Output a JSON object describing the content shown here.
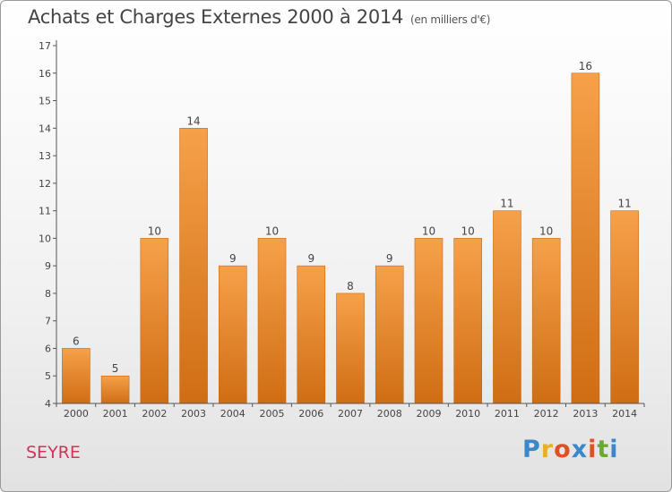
{
  "title": "Achats et Charges Externes 2000 à 2014",
  "unit": "(en milliers d'€)",
  "town": "SEYRE",
  "logo": {
    "text": "Proxiti",
    "letters": [
      "P",
      "r",
      "o",
      "x",
      "i",
      "t",
      "i"
    ],
    "colors": [
      "#3a87c9",
      "#e8b020",
      "#e05020",
      "#3a87c9",
      "#e05020",
      "#6aaa30",
      "#3a87c9"
    ]
  },
  "colors": {
    "bar": "#f0922e",
    "bar_dark": "#d26e12",
    "axis": "#555555",
    "label": "#444444"
  },
  "chart_data": {
    "type": "bar",
    "categories": [
      "2000",
      "2001",
      "2002",
      "2003",
      "2004",
      "2005",
      "2006",
      "2007",
      "2008",
      "2009",
      "2010",
      "2011",
      "2012",
      "2013",
      "2014"
    ],
    "values": [
      6,
      5,
      10,
      14,
      9,
      10,
      9,
      8,
      9,
      10,
      10,
      11,
      10,
      16,
      11
    ],
    "ylim": [
      4,
      17
    ],
    "yticks": [
      4,
      5,
      6,
      7,
      8,
      9,
      10,
      11,
      12,
      13,
      14,
      15,
      16,
      17
    ],
    "data_labels": true,
    "legend": "none"
  }
}
